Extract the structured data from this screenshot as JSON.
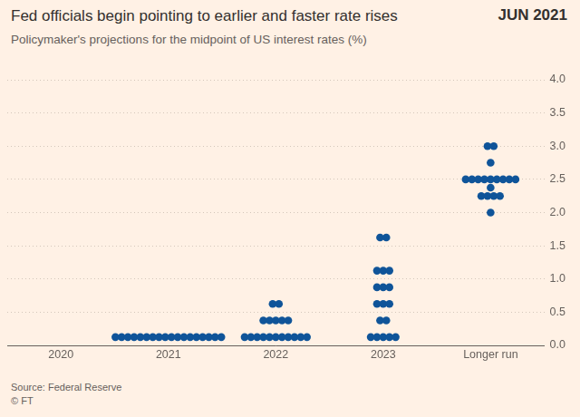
{
  "chart_data": {
    "type": "scatter",
    "title": "Fed officials begin pointing to earlier and faster rate rises",
    "subtitle": "Policymaker's projections for the midpoint of US interest rates (%)",
    "annotations": [
      "JUN 2021"
    ],
    "footnotes": [
      "Source: Federal Reserve",
      "© FT"
    ],
    "categories": [
      "2020",
      "2021",
      "2022",
      "2023",
      "Longer run"
    ],
    "points": [
      {
        "x": "2021",
        "y": 0.125,
        "count": 18
      },
      {
        "x": "2022",
        "y": 0.125,
        "count": 11
      },
      {
        "x": "2022",
        "y": 0.375,
        "count": 5
      },
      {
        "x": "2022",
        "y": 0.625,
        "count": 2
      },
      {
        "x": "2023",
        "y": 0.125,
        "count": 5
      },
      {
        "x": "2023",
        "y": 0.375,
        "count": 2
      },
      {
        "x": "2023",
        "y": 0.625,
        "count": 3
      },
      {
        "x": "2023",
        "y": 0.875,
        "count": 3
      },
      {
        "x": "2023",
        "y": 1.125,
        "count": 3
      },
      {
        "x": "2023",
        "y": 1.625,
        "count": 2
      },
      {
        "x": "Longer run",
        "y": 2.0,
        "count": 1
      },
      {
        "x": "Longer run",
        "y": 2.25,
        "count": 4
      },
      {
        "x": "Longer run",
        "y": 2.375,
        "count": 1
      },
      {
        "x": "Longer run",
        "y": 2.5,
        "count": 9
      },
      {
        "x": "Longer run",
        "y": 2.75,
        "count": 1
      },
      {
        "x": "Longer run",
        "y": 3.0,
        "count": 2
      }
    ],
    "color": "#0f5499",
    "marker": "circle",
    "ylim": [
      0,
      4
    ],
    "yticks": [
      {
        "value": 0,
        "label": "0.0"
      },
      {
        "value": 0.5,
        "label": "0.5"
      },
      {
        "value": 1,
        "label": "1.0"
      },
      {
        "value": 1.5,
        "label": "1.5"
      },
      {
        "value": 2,
        "label": "2.0"
      },
      {
        "value": 2.5,
        "label": "2.5"
      },
      {
        "value": 3,
        "label": "3.0"
      },
      {
        "value": 3.5,
        "label": "3.5"
      },
      {
        "value": 4,
        "label": "4.0"
      }
    ],
    "grid": true
  }
}
